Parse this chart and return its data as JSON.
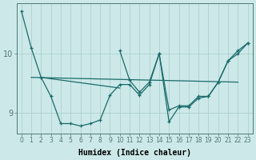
{
  "xlabel": "Humidex (Indice chaleur)",
  "background_color": "#cce8e8",
  "grid_color": "#a8cccc",
  "line_color": "#1a6b6b",
  "xlim": [
    -0.5,
    23.5
  ],
  "ylim": [
    8.65,
    10.85
  ],
  "yticks": [
    9,
    10
  ],
  "xticks": [
    0,
    1,
    2,
    3,
    4,
    5,
    6,
    7,
    8,
    9,
    10,
    11,
    12,
    13,
    14,
    15,
    16,
    17,
    18,
    19,
    20,
    21,
    22,
    23
  ],
  "line1_x": [
    0,
    1,
    2,
    3,
    4,
    5,
    6,
    7,
    8,
    9,
    10,
    11,
    12,
    13,
    14,
    15,
    16,
    17,
    18,
    19,
    20,
    21,
    22,
    23
  ],
  "line1_y": [
    10.72,
    10.1,
    9.6,
    9.28,
    8.82,
    8.82,
    8.78,
    8.82,
    8.88,
    9.3,
    9.48,
    9.48,
    9.3,
    9.48,
    10.0,
    9.05,
    9.12,
    9.12,
    9.28,
    9.28,
    9.52,
    9.88,
    10.05,
    10.18
  ],
  "line2_x": [
    1,
    22
  ],
  "line2_y": [
    9.6,
    9.52
  ],
  "line3_x": [
    2,
    10
  ],
  "line3_y": [
    9.6,
    9.42
  ],
  "line4_x": [
    10,
    11,
    12,
    13,
    14,
    15,
    16,
    17,
    18,
    19,
    20,
    21,
    22,
    23
  ],
  "line4_y": [
    10.05,
    9.55,
    9.35,
    9.52,
    10.0,
    8.85,
    9.1,
    9.1,
    9.25,
    9.28,
    9.52,
    9.88,
    10.0,
    10.18
  ]
}
